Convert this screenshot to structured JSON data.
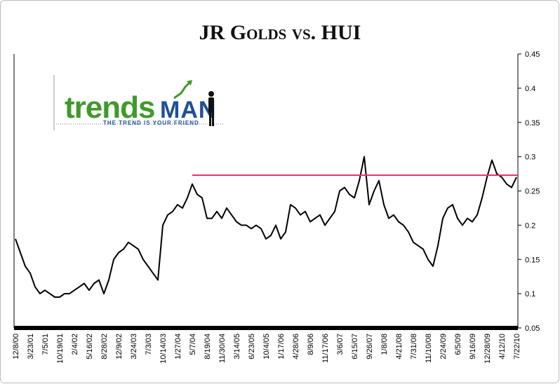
{
  "chart_data": {
    "type": "line",
    "title": "JR Golds vs. HUI",
    "logo": {
      "brand_left": "trends",
      "brand_right": "MAN",
      "tagline": "THE TREND IS YOUR FRIEND"
    },
    "categories": [
      "12/8/00",
      null,
      null,
      "3/23/01",
      null,
      null,
      "7/5/01",
      null,
      null,
      "10/19/01",
      null,
      null,
      "2/4/02",
      null,
      null,
      "5/16/02",
      null,
      null,
      "8/28/02",
      null,
      null,
      "12/9/02",
      null,
      null,
      "3/24/03",
      null,
      null,
      "7/3/03",
      null,
      null,
      "10/14/03",
      null,
      null,
      "1/27/04",
      null,
      null,
      "5/7/04",
      null,
      null,
      "8/19/04",
      null,
      null,
      "11/30/04",
      null,
      null,
      "3/14/05",
      null,
      null,
      "6/23/05",
      null,
      null,
      "10/4/05",
      null,
      null,
      "1/17/06",
      null,
      null,
      "4/28/06",
      null,
      null,
      "8/9/06",
      null,
      null,
      "11/17/06",
      null,
      null,
      "3/6/07",
      null,
      null,
      "6/15/07",
      null,
      null,
      "9/26/07",
      null,
      null,
      "1/8/08",
      null,
      null,
      "4/21/08",
      null,
      null,
      "7/31/08",
      null,
      null,
      "11/10/08",
      null,
      null,
      "2/24/09",
      null,
      null,
      "6/5/09",
      null,
      null,
      "9/16/09",
      null,
      null,
      "12/28/09",
      null,
      null,
      "4/12/10",
      null,
      null,
      "7/22/10"
    ],
    "series": [
      {
        "color": "#000000",
        "values": [
          0.18,
          0.16,
          0.14,
          0.13,
          0.11,
          0.1,
          0.105,
          0.1,
          0.095,
          0.095,
          0.1,
          0.1,
          0.105,
          0.11,
          0.115,
          0.105,
          0.115,
          0.12,
          0.1,
          0.12,
          0.15,
          0.16,
          0.165,
          0.175,
          0.17,
          0.165,
          0.15,
          0.14,
          0.13,
          0.12,
          0.2,
          0.215,
          0.22,
          0.23,
          0.225,
          0.24,
          0.26,
          0.245,
          0.24,
          0.21,
          0.21,
          0.22,
          0.21,
          0.225,
          0.215,
          0.205,
          0.2,
          0.2,
          0.195,
          0.2,
          0.195,
          0.18,
          0.185,
          0.2,
          0.18,
          0.19,
          0.23,
          0.225,
          0.215,
          0.22,
          0.205,
          0.21,
          0.215,
          0.2,
          0.21,
          0.22,
          0.25,
          0.255,
          0.245,
          0.24,
          0.265,
          0.3,
          0.23,
          0.25,
          0.265,
          0.23,
          0.21,
          0.215,
          0.205,
          0.2,
          0.19,
          0.175,
          0.17,
          0.165,
          0.15,
          0.14,
          0.17,
          0.21,
          0.225,
          0.23,
          0.21,
          0.2,
          0.21,
          0.205,
          0.215,
          0.24,
          0.27,
          0.295,
          0.275,
          0.27,
          0.26,
          0.255,
          0.27
        ]
      }
    ],
    "reference_line": {
      "value": 0.273,
      "color": "#e8336b",
      "from": "5/7/04"
    },
    "ylim": [
      0.05,
      0.45
    ],
    "yticks": [
      0.05,
      0.1,
      0.15,
      0.2,
      0.25,
      0.3,
      0.35,
      0.4,
      0.45
    ],
    "y_axis_side": "right"
  }
}
